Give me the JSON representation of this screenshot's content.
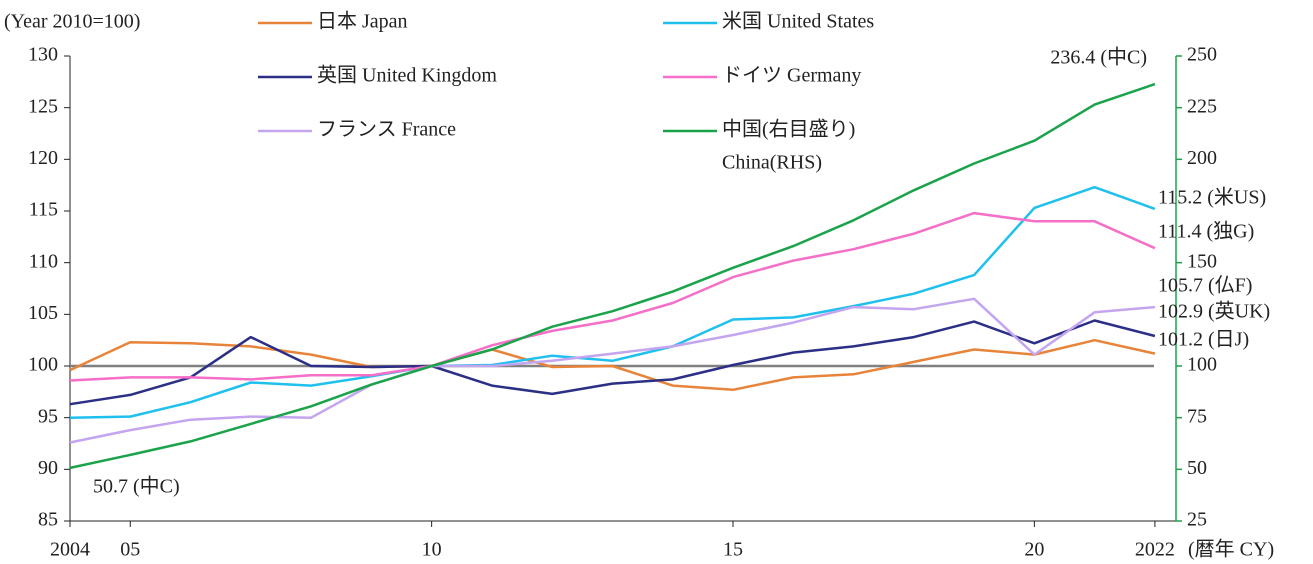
{
  "chart_data": {
    "type": "line",
    "y_label": "(Year 2010=100)",
    "x_label": "(暦年 CY)",
    "x": [
      2004,
      2005,
      2006,
      2007,
      2008,
      2009,
      2010,
      2011,
      2012,
      2013,
      2014,
      2015,
      2016,
      2017,
      2018,
      2019,
      2020,
      2021,
      2022
    ],
    "xlim": [
      2004,
      2022.35
    ],
    "xticks": [
      2004,
      {
        "value": 2005,
        "label": "05"
      },
      {
        "value": 2010,
        "label": "10"
      },
      {
        "value": 2015,
        "label": "15"
      },
      {
        "value": 2020,
        "label": "20"
      },
      2022
    ],
    "ylim": [
      85,
      130
    ],
    "yticks": [
      85,
      90,
      95,
      100,
      105,
      110,
      115,
      120,
      125,
      130
    ],
    "y2lim": [
      25,
      250
    ],
    "y2ticks": [
      25,
      50,
      75,
      100,
      150,
      200,
      225,
      250
    ],
    "y2color": "#1aa34a",
    "reference_line": 100,
    "series": [
      {
        "name": "日本 Japan",
        "color": "#e8843a",
        "values": [
          99.6,
          102.3,
          102.2,
          101.9,
          101.1,
          99.9,
          100,
          101.6,
          99.9,
          100.0,
          98.1,
          97.7,
          98.9,
          99.2,
          100.4,
          101.6,
          101.1,
          102.5,
          101.2
        ],
        "value_labels": [
          null,
          null,
          null,
          null,
          null,
          null,
          null,
          null,
          null,
          null,
          null,
          null,
          null,
          null,
          null,
          null,
          null,
          null,
          "101.2 (日J)"
        ]
      },
      {
        "name": "米国 United States",
        "color": "#1fc0ee",
        "values": [
          95.0,
          95.1,
          96.5,
          98.4,
          98.1,
          99.0,
          100,
          100.1,
          101.0,
          100.5,
          101.9,
          104.5,
          104.7,
          105.8,
          107.0,
          108.8,
          115.3,
          117.3,
          115.2
        ],
        "value_labels": [
          null,
          null,
          null,
          null,
          null,
          null,
          null,
          null,
          null,
          null,
          null,
          null,
          null,
          null,
          null,
          null,
          null,
          null,
          "115.2 (米US)"
        ]
      },
      {
        "name": "英国 United Kingdom",
        "color": "#2b2f86",
        "values": [
          96.3,
          97.2,
          98.9,
          102.8,
          100.0,
          99.9,
          100,
          98.1,
          97.3,
          98.3,
          98.7,
          100.1,
          101.3,
          101.9,
          102.8,
          104.3,
          102.2,
          104.4,
          102.9
        ],
        "value_labels": [
          null,
          null,
          null,
          null,
          null,
          null,
          null,
          null,
          null,
          null,
          null,
          null,
          null,
          null,
          null,
          null,
          null,
          null,
          "102.9 (英UK)"
        ]
      },
      {
        "name": "ドイツ Germany",
        "color": "#f56ec8",
        "values": [
          98.6,
          98.9,
          98.9,
          98.7,
          99.1,
          99.1,
          100,
          102.0,
          103.4,
          104.4,
          106.1,
          108.6,
          110.2,
          111.3,
          112.8,
          114.8,
          114.0,
          114.0,
          111.4
        ],
        "value_labels": [
          null,
          null,
          null,
          null,
          null,
          null,
          null,
          null,
          null,
          null,
          null,
          null,
          null,
          null,
          null,
          null,
          null,
          null,
          "111.4 (独G)"
        ]
      },
      {
        "name": "フランス France",
        "color": "#c3a5f0",
        "values": [
          92.6,
          93.8,
          94.8,
          95.1,
          95.0,
          98.2,
          100,
          100.0,
          100.5,
          101.2,
          101.9,
          103.0,
          104.2,
          105.7,
          105.5,
          106.5,
          101.1,
          105.2,
          105.7
        ],
        "value_labels": [
          null,
          null,
          null,
          null,
          null,
          null,
          null,
          null,
          null,
          null,
          null,
          null,
          null,
          null,
          null,
          null,
          null,
          null,
          "105.7 (仏F)"
        ]
      },
      {
        "name": "中国(右目盛り)",
        "name_en": "China(RHS)",
        "color": "#1aa34a",
        "axis": "y2",
        "values": [
          50.7,
          57,
          63.5,
          72,
          80.5,
          91,
          100,
          108,
          119,
          126.5,
          136,
          147.5,
          158,
          170.5,
          185,
          198,
          209,
          226.5,
          236.4
        ],
        "value_labels": [
          "50.7 (中C)",
          null,
          null,
          null,
          null,
          null,
          null,
          null,
          null,
          null,
          null,
          null,
          null,
          null,
          null,
          null,
          null,
          null,
          "236.4 (中C)"
        ]
      }
    ]
  }
}
